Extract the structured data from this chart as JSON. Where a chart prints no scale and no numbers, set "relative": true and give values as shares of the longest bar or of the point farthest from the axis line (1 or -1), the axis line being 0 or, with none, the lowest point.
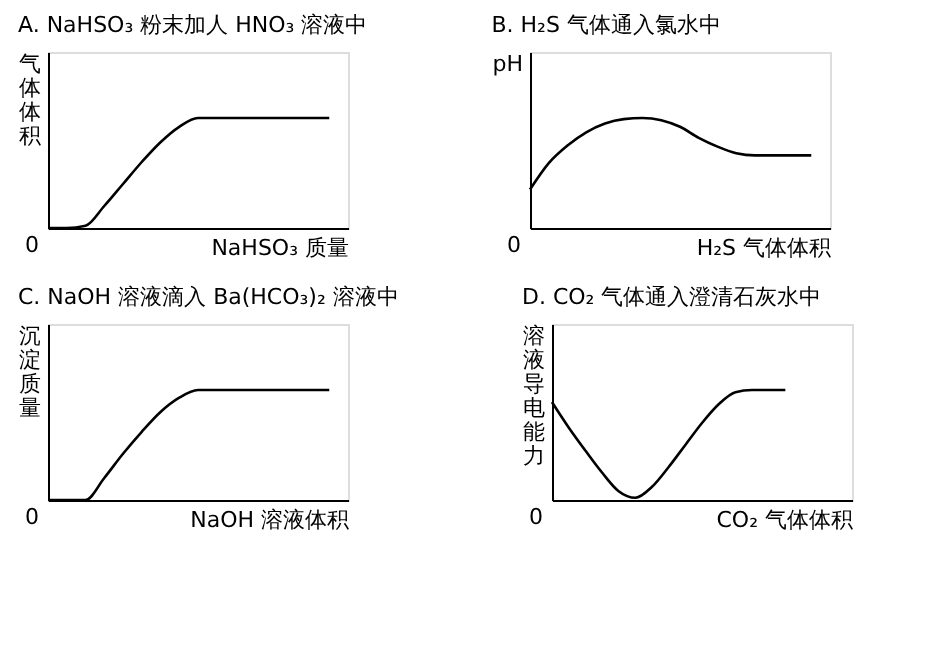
{
  "chart_data": [
    {
      "type": "line",
      "relative": true,
      "title": "A. NaHSO₃ 粉末加人 HNO₃ 溶液中",
      "xlabel": "NaHSO₃ 质量",
      "ylabel": "气体体积",
      "tick_labels": false,
      "grid": false,
      "color": "#000000",
      "annotations": [
        "0"
      ],
      "categories": [
        null,
        null,
        null,
        null,
        null,
        null,
        null,
        null,
        null,
        null,
        null,
        null,
        null,
        null,
        null,
        null,
        null
      ],
      "values": [
        0,
        0,
        0.02,
        0.2,
        0.4,
        0.6,
        0.78,
        0.92,
        1,
        1,
        1,
        1,
        1,
        1,
        1,
        1,
        null
      ]
    },
    {
      "type": "line",
      "relative": true,
      "title": "B. H₂S 气体通入氯水中",
      "xlabel": "H₂S 气体体积",
      "ylabel": "pH",
      "tick_labels": false,
      "grid": false,
      "color": "#000000",
      "annotations": [
        "0"
      ],
      "categories": [
        null,
        null,
        null,
        null,
        null,
        null,
        null,
        null,
        null,
        null,
        null,
        null,
        null,
        null,
        null,
        null,
        null
      ],
      "values": [
        0.35,
        0.59,
        0.75,
        0.87,
        0.95,
        0.99,
        1,
        0.98,
        0.92,
        0.82,
        0.74,
        0.68,
        0.66,
        0.66,
        0.66,
        0.66,
        null
      ]
    },
    {
      "type": "line",
      "relative": true,
      "title": "C. NaOH 溶液滴入 Ba(HCO₃)₂ 溶液中",
      "xlabel": "NaOH 溶液体积",
      "ylabel": "沉淀质量",
      "tick_labels": false,
      "grid": false,
      "color": "#000000",
      "annotations": [
        "0"
      ],
      "categories": [
        null,
        null,
        null,
        null,
        null,
        null,
        null,
        null,
        null,
        null,
        null,
        null,
        null,
        null,
        null,
        null,
        null
      ],
      "values": [
        0,
        0,
        0,
        0.2,
        0.42,
        0.62,
        0.8,
        0.93,
        1,
        1,
        1,
        1,
        1,
        1,
        1,
        1,
        null
      ]
    },
    {
      "type": "line",
      "relative": true,
      "title": "D. CO₂ 气体通入澄清石灰水中",
      "xlabel": "CO₂ 气体体积",
      "ylabel": "溶液导电能力",
      "tick_labels": false,
      "grid": false,
      "color": "#000000",
      "annotations": [
        "0"
      ],
      "categories": [
        null,
        null,
        null,
        null,
        null,
        null,
        null,
        null,
        null,
        null,
        null,
        null,
        null,
        null,
        null,
        null,
        null,
        null,
        null
      ],
      "values": [
        0.89,
        0.66,
        0.45,
        0.25,
        0.08,
        0.02,
        0.12,
        0.3,
        0.5,
        0.7,
        0.87,
        0.98,
        1,
        1,
        1,
        null,
        null,
        null,
        null
      ]
    }
  ]
}
